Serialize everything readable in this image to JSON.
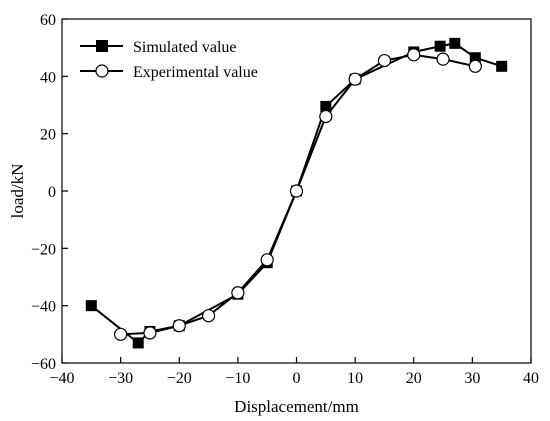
{
  "chart_data": {
    "type": "line",
    "xlabel": "Displacement/mm",
    "ylabel": "load/kN",
    "xlim": [
      -40,
      40
    ],
    "ylim": [
      -60,
      60
    ],
    "x_ticks": [
      -40,
      -30,
      -20,
      -10,
      0,
      10,
      20,
      30,
      40
    ],
    "y_ticks": [
      -60,
      -40,
      -20,
      0,
      20,
      40,
      60
    ],
    "legend_position": "top-left",
    "grid": false,
    "series": [
      {
        "name": "Simulated value",
        "marker": "filled-square",
        "color": "#000000",
        "points": [
          [
            -35,
            -40
          ],
          [
            -27,
            -53
          ],
          [
            -25,
            -49
          ],
          [
            -20,
            -47
          ],
          [
            -10,
            -36
          ],
          [
            -5,
            -25
          ],
          [
            0,
            0
          ],
          [
            5,
            29.5
          ],
          [
            10,
            39
          ],
          [
            20,
            48.5
          ],
          [
            24.5,
            50.5
          ],
          [
            27,
            51.5
          ],
          [
            30.5,
            46.5
          ],
          [
            35,
            43.5
          ]
        ]
      },
      {
        "name": "Experimental value",
        "marker": "open-circle",
        "color": "#000000",
        "points": [
          [
            -30,
            -50
          ],
          [
            -25,
            -49.5
          ],
          [
            -20,
            -47
          ],
          [
            -15,
            -43.5
          ],
          [
            -10,
            -35.5
          ],
          [
            -5,
            -24
          ],
          [
            0,
            0
          ],
          [
            5,
            26
          ],
          [
            10,
            39
          ],
          [
            15,
            45.5
          ],
          [
            20,
            47.5
          ],
          [
            25,
            46
          ],
          [
            30.5,
            43.5
          ]
        ]
      }
    ]
  }
}
